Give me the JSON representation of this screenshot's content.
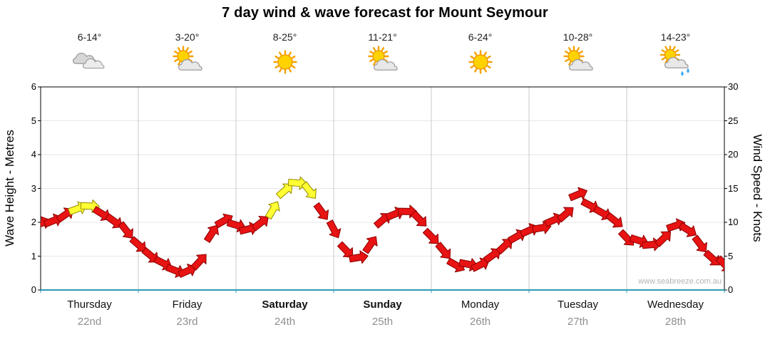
{
  "title": "7 day wind & wave forecast for Mount Seymour",
  "watermark": "www.seabreeze.com.au",
  "left_axis": {
    "label": "Wave Height - Metres",
    "ticks": [
      "0",
      "1",
      "2",
      "3",
      "4",
      "5",
      "6"
    ]
  },
  "right_axis": {
    "label": "Wind Speed - Knots",
    "ticks": [
      "0",
      "5",
      "10",
      "15",
      "20",
      "25",
      "30"
    ]
  },
  "days": [
    {
      "name": "Thursday",
      "date": "22nd",
      "temp": "6-14°",
      "icon": "cloudy",
      "bold": false
    },
    {
      "name": "Friday",
      "date": "23rd",
      "temp": "3-20°",
      "icon": "sun-cloud",
      "bold": false
    },
    {
      "name": "Saturday",
      "date": "24th",
      "temp": "8-25°",
      "icon": "sunny",
      "bold": true
    },
    {
      "name": "Sunday",
      "date": "25th",
      "temp": "11-21°",
      "icon": "sun-cloud",
      "bold": true
    },
    {
      "name": "Monday",
      "date": "26th",
      "temp": "6-24°",
      "icon": "sunny",
      "bold": false
    },
    {
      "name": "Tuesday",
      "date": "27th",
      "temp": "10-28°",
      "icon": "sun-cloud",
      "bold": false
    },
    {
      "name": "Wednesday",
      "date": "28th",
      "temp": "14-23°",
      "icon": "sun-cloud-rain",
      "bold": false
    }
  ],
  "palette": {
    "arrow_red": "#e81313",
    "arrow_red_outline": "#8c0000",
    "arrow_yellow": "#ffff33",
    "arrow_yellow_outline": "#938900",
    "axis_bottom": "#2e9ab5",
    "grid_vertical": "#c9c9c9",
    "grid_horizontal": "#e6e6e6",
    "border": "#000000"
  },
  "chart_data": {
    "type": "line",
    "title": "7 day wind & wave forecast for Mount Seymour",
    "marker": "wind-arrow",
    "x_categories": [
      "Thursday 22nd",
      "Friday 23rd",
      "Saturday 24th",
      "Sunday 25th",
      "Monday 26th",
      "Tuesday 27th",
      "Wednesday 28th"
    ],
    "sample_interval_hours": 3,
    "total_hours": 168,
    "y_left": {
      "label": "Wave Height - Metres",
      "range": [
        0,
        6
      ]
    },
    "y_right": {
      "label": "Wind Speed - Knots",
      "range": [
        0,
        30
      ]
    },
    "wind_knots": [
      9.5,
      10,
      11,
      12,
      12.5,
      11.5,
      10.5,
      8.5,
      6.5,
      5,
      4,
      3,
      3,
      4.5,
      8,
      10,
      9.5,
      9,
      10,
      12,
      15,
      15.5,
      14.5,
      11.5,
      9,
      6,
      5,
      7,
      10,
      11,
      11.5,
      10.5,
      8,
      6,
      4,
      3.5,
      3.5,
      5,
      6.5,
      8,
      9,
      9.5,
      10,
      11,
      14,
      12.5,
      11.5,
      10.5,
      8,
      7,
      6.5,
      7.5,
      9.5,
      9,
      7,
      5,
      3.5
    ],
    "wave_height_m": [
      1.9,
      2,
      2.2,
      2.4,
      2.5,
      2.3,
      2.1,
      1.7,
      1.3,
      1,
      0.8,
      0.6,
      0.6,
      0.9,
      1.6,
      2,
      1.9,
      1.8,
      2,
      2.4,
      3,
      3.1,
      2.9,
      2.3,
      1.8,
      1.2,
      1,
      1.4,
      2,
      2.2,
      2.3,
      2.1,
      1.6,
      1.2,
      0.8,
      0.7,
      0.7,
      1,
      1.3,
      1.6,
      1.8,
      1.9,
      2,
      2.2,
      2.8,
      2.5,
      2.3,
      2.1,
      1.6,
      1.4,
      1.3,
      1.5,
      1.9,
      1.8,
      1.4,
      1,
      0.7
    ],
    "yellow_indices": [
      3,
      4,
      19,
      20,
      21,
      22
    ],
    "grid": "vertical-day-boundaries",
    "legend": "none"
  }
}
